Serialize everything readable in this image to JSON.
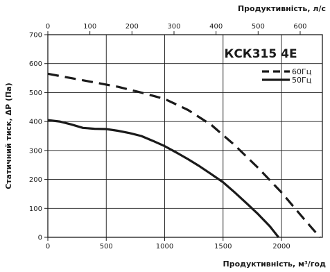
{
  "chart_data": {
    "type": "line",
    "title": "КСК315 4Е",
    "xlabel": "Продуктивність, м³/год",
    "x2label": "Продуктивність, л/с",
    "ylabel": "Статичний тиск, ΔP (Па)",
    "xlim": [
      0,
      2350
    ],
    "x2lim": [
      0,
      652.8
    ],
    "ylim": [
      0,
      700
    ],
    "x_ticks": [
      0,
      500,
      1000,
      1500,
      2000
    ],
    "x2_ticks": [
      0,
      100,
      200,
      300,
      400,
      500,
      600
    ],
    "y_ticks": [
      0,
      100,
      200,
      300,
      400,
      500,
      600,
      700
    ],
    "grid": true,
    "legend_position": "top-right",
    "series": [
      {
        "name": "60Гц",
        "style": "dashed",
        "color": "#1a1a1a",
        "x": [
          0,
          200,
          400,
          600,
          800,
          1000,
          1200,
          1400,
          1600,
          1800,
          2000,
          2200,
          2330
        ],
        "y": [
          565,
          550,
          535,
          520,
          500,
          478,
          440,
          388,
          318,
          240,
          155,
          60,
          0
        ]
      },
      {
        "name": "50Гц",
        "style": "solid",
        "color": "#1a1a1a",
        "x": [
          0,
          100,
          200,
          300,
          400,
          500,
          600,
          700,
          800,
          900,
          1000,
          1100,
          1200,
          1300,
          1400,
          1500,
          1600,
          1700,
          1800,
          1900,
          1975
        ],
        "y": [
          405,
          400,
          390,
          378,
          375,
          374,
          368,
          360,
          350,
          333,
          315,
          293,
          270,
          245,
          218,
          190,
          155,
          118,
          80,
          38,
          0
        ]
      }
    ]
  }
}
